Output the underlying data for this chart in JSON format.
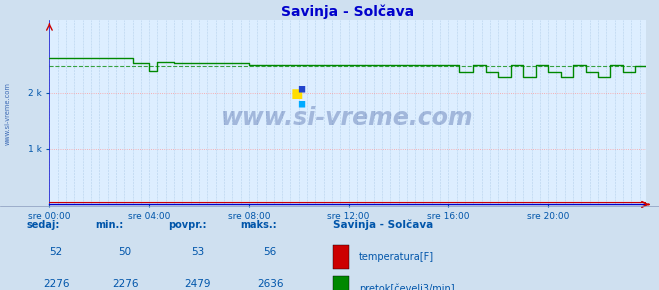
{
  "title": "Savinja - Solčava",
  "bg_color": "#cfe0f0",
  "plot_bg_color": "#ddeeff",
  "grid_color_h": "#ff9999",
  "grid_color_v": "#99bbdd",
  "line_color_flow": "#008800",
  "line_color_temp": "#cc0000",
  "axis_color": "#0000cc",
  "text_color": "#0055aa",
  "title_color": "#0000cc",
  "xlabel_color": "#0044aa",
  "ylabel_ticks": [
    "1 k",
    "2 k"
  ],
  "ylabel_vals": [
    1000,
    2000
  ],
  "ylim": [
    0,
    3300
  ],
  "xlim": [
    0,
    287
  ],
  "xtick_positions": [
    0,
    48,
    96,
    144,
    192,
    240
  ],
  "xtick_labels": [
    "sre 00:00",
    "sre 04:00",
    "sre 08:00",
    "sre 12:00",
    "sre 16:00",
    "sre 20:00"
  ],
  "watermark": "www.si-vreme.com",
  "watermark_color": "#1a3a8a",
  "sidebar_text": "www.si-vreme.com",
  "sidebar_color": "#2255aa",
  "legend_title": "Savinja - Solčava",
  "legend_items": [
    "temperatura[F]",
    "pretok[čevelj3/min]"
  ],
  "legend_colors": [
    "#cc0000",
    "#008800"
  ],
  "stats_headers": [
    "sedaj:",
    "min.:",
    "povpr.:",
    "maks.:"
  ],
  "stats_temp": [
    52,
    50,
    53,
    56
  ],
  "stats_flow": [
    2276,
    2276,
    2479,
    2636
  ],
  "avg_flow": 2479
}
